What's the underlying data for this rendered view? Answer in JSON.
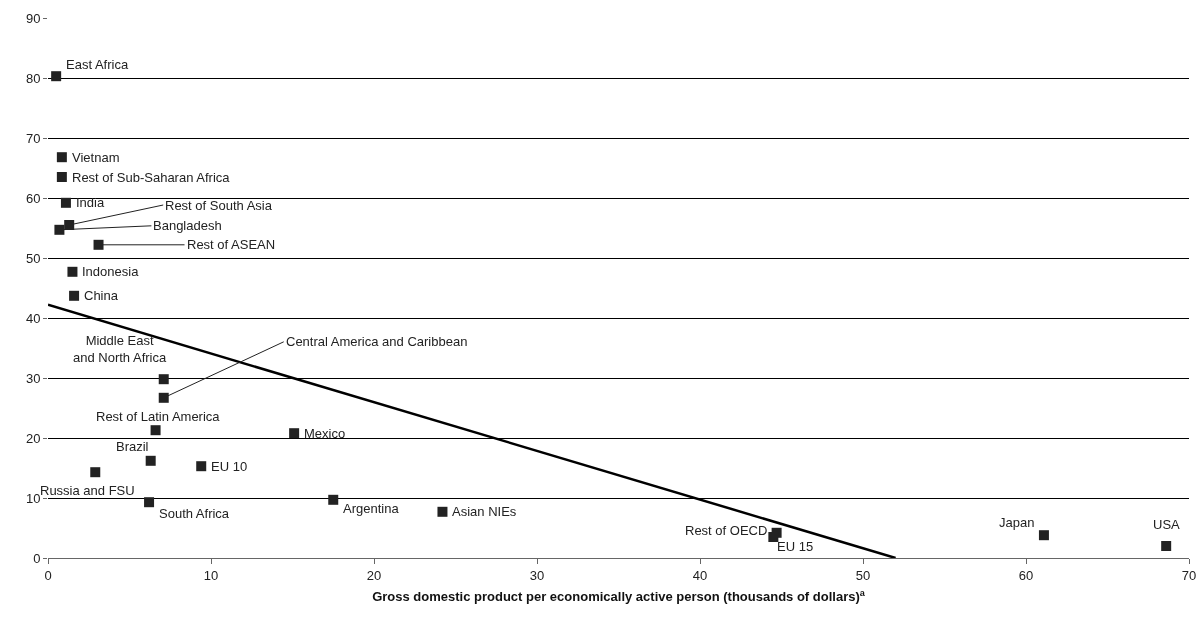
{
  "chart_data": {
    "type": "scatter",
    "xlabel": "Gross domestic product per economically active person (thousands of dollars)$^{a}$",
    "xlim": [
      0,
      70
    ],
    "xticks": [
      0,
      10,
      20,
      30,
      40,
      50,
      60,
      70
    ],
    "ylim": [
      0,
      90
    ],
    "yticks": [
      0,
      10,
      20,
      30,
      40,
      50,
      60,
      70,
      80,
      90
    ],
    "grid": "y",
    "legend": false,
    "series": [
      {
        "marker": "square",
        "color": "#222222",
        "x": [
          0.5,
          0.85,
          0.85,
          1.1,
          1.3,
          0.7,
          3.1,
          1.5,
          1.6,
          7.1,
          7.1,
          6.6,
          15.1,
          6.3,
          9.4,
          2.9,
          6.2,
          17.5,
          24.2,
          44.7,
          44.5,
          61.1,
          68.6
        ],
        "values": [
          80.3,
          66.8,
          63.5,
          59.2,
          55.5,
          54.7,
          52.2,
          47.7,
          43.7,
          29.8,
          26.7,
          21.3,
          20.8,
          16.2,
          15.3,
          14.3,
          9.3,
          9.7,
          7.7,
          4.2,
          3.5,
          3.8,
          2.0
        ]
      },
      {
        "type": "line",
        "marker": "none",
        "color": "#000000",
        "line_style": "solid",
        "x": [
          0,
          52
        ],
        "values": [
          42.2,
          0
        ]
      }
    ],
    "annotations": [
      {
        "text": "East Africa",
        "x": 0.5,
        "y": 80.3
      },
      {
        "text": "Vietnam",
        "x": 0.85,
        "y": 66.8
      },
      {
        "text": "Rest of Sub-Saharan Africa",
        "x": 0.85,
        "y": 63.5
      },
      {
        "text": "India",
        "x": 1.1,
        "y": 59.2
      },
      {
        "text": "Rest of South Asia",
        "x": 1.3,
        "y": 55.5
      },
      {
        "text": "Bangladesh",
        "x": 0.7,
        "y": 54.7
      },
      {
        "text": "Rest of ASEAN",
        "x": 3.1,
        "y": 52.2
      },
      {
        "text": "Indonesia",
        "x": 1.5,
        "y": 47.7
      },
      {
        "text": "China",
        "x": 1.6,
        "y": 43.7
      },
      {
        "text": "Middle East\nand North Africa",
        "x": 7.1,
        "y": 29.8
      },
      {
        "text": "Central America and Caribbean",
        "x": 7.1,
        "y": 26.7
      },
      {
        "text": "Rest of Latin America",
        "x": 6.6,
        "y": 21.3
      },
      {
        "text": "Mexico",
        "x": 15.1,
        "y": 20.8
      },
      {
        "text": "Brazil",
        "x": 6.3,
        "y": 16.2
      },
      {
        "text": "EU 10",
        "x": 9.4,
        "y": 15.3
      },
      {
        "text": "Russia and FSU",
        "x": 2.9,
        "y": 14.3
      },
      {
        "text": "South Africa",
        "x": 6.2,
        "y": 9.3
      },
      {
        "text": "Argentina",
        "x": 17.5,
        "y": 9.7
      },
      {
        "text": "Asian NIEs",
        "x": 24.2,
        "y": 7.7
      },
      {
        "text": "Rest of OECD",
        "x": 44.7,
        "y": 4.2
      },
      {
        "text": "EU 15",
        "x": 44.5,
        "y": 3.5
      },
      {
        "text": "Japan",
        "x": 61.1,
        "y": 3.8
      },
      {
        "text": "USA",
        "x": 68.6,
        "y": 2.0
      }
    ]
  }
}
